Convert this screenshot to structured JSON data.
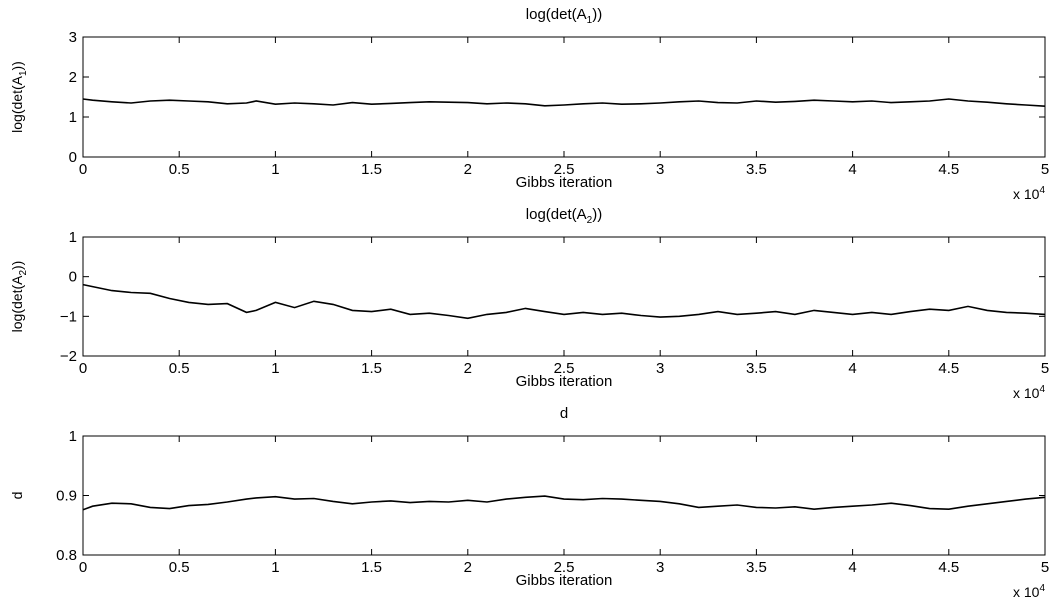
{
  "chart_data": [
    {
      "type": "line",
      "title": "log(det(A_1))",
      "xlabel": "Gibbs iteration",
      "ylabel": "log(det(A_1))",
      "x_multiplier": "x 10^4",
      "xlim": [
        0,
        5
      ],
      "ylim": [
        0,
        3
      ],
      "xticks": [
        "0",
        "0.5",
        "1",
        "1.5",
        "2",
        "2.5",
        "3",
        "3.5",
        "4",
        "4.5",
        "5"
      ],
      "yticks": [
        "0",
        "1",
        "2",
        "3"
      ],
      "grid": false,
      "series": [
        {
          "x": [
            0,
            0.05,
            0.15,
            0.25,
            0.35,
            0.45,
            0.55,
            0.65,
            0.75,
            0.85,
            0.9,
            1.0,
            1.1,
            1.2,
            1.3,
            1.4,
            1.5,
            1.6,
            1.7,
            1.8,
            1.9,
            2.0,
            2.1,
            2.2,
            2.3,
            2.4,
            2.5,
            2.6,
            2.7,
            2.8,
            2.9,
            3.0,
            3.1,
            3.2,
            3.3,
            3.4,
            3.5,
            3.6,
            3.7,
            3.8,
            3.9,
            4.0,
            4.1,
            4.2,
            4.3,
            4.4,
            4.5,
            4.6,
            4.7,
            4.8,
            4.9,
            5.0
          ],
          "y": [
            1.45,
            1.42,
            1.38,
            1.35,
            1.4,
            1.42,
            1.4,
            1.38,
            1.33,
            1.35,
            1.4,
            1.32,
            1.35,
            1.33,
            1.3,
            1.36,
            1.32,
            1.34,
            1.36,
            1.38,
            1.37,
            1.36,
            1.33,
            1.35,
            1.33,
            1.28,
            1.3,
            1.33,
            1.35,
            1.32,
            1.33,
            1.35,
            1.38,
            1.4,
            1.36,
            1.35,
            1.4,
            1.37,
            1.39,
            1.42,
            1.4,
            1.38,
            1.4,
            1.36,
            1.38,
            1.4,
            1.45,
            1.4,
            1.37,
            1.33,
            1.3,
            1.27
          ]
        }
      ]
    },
    {
      "type": "line",
      "title": "log(det(A_2))",
      "xlabel": "Gibbs iteration",
      "ylabel": "log(det(A_2))",
      "x_multiplier": "x 10^4",
      "xlim": [
        0,
        5
      ],
      "ylim": [
        -2,
        1
      ],
      "xticks": [
        "0",
        "0.5",
        "1",
        "1.5",
        "2",
        "2.5",
        "3",
        "3.5",
        "4",
        "4.5",
        "5"
      ],
      "yticks": [
        "−2",
        "−1",
        "0",
        "1"
      ],
      "grid": false,
      "series": [
        {
          "x": [
            0,
            0.05,
            0.15,
            0.25,
            0.35,
            0.45,
            0.55,
            0.65,
            0.75,
            0.85,
            0.9,
            1.0,
            1.1,
            1.2,
            1.3,
            1.4,
            1.5,
            1.6,
            1.7,
            1.8,
            1.9,
            2.0,
            2.1,
            2.2,
            2.3,
            2.4,
            2.5,
            2.6,
            2.7,
            2.8,
            2.9,
            3.0,
            3.1,
            3.2,
            3.3,
            3.4,
            3.5,
            3.6,
            3.7,
            3.8,
            3.9,
            4.0,
            4.1,
            4.2,
            4.3,
            4.4,
            4.5,
            4.6,
            4.7,
            4.8,
            4.9,
            5.0
          ],
          "y": [
            -0.2,
            -0.25,
            -0.35,
            -0.4,
            -0.42,
            -0.55,
            -0.65,
            -0.7,
            -0.68,
            -0.9,
            -0.85,
            -0.65,
            -0.78,
            -0.62,
            -0.7,
            -0.85,
            -0.88,
            -0.82,
            -0.95,
            -0.92,
            -0.98,
            -1.05,
            -0.95,
            -0.9,
            -0.8,
            -0.88,
            -0.95,
            -0.9,
            -0.95,
            -0.92,
            -0.98,
            -1.02,
            -1.0,
            -0.95,
            -0.88,
            -0.95,
            -0.92,
            -0.88,
            -0.95,
            -0.85,
            -0.9,
            -0.95,
            -0.9,
            -0.95,
            -0.88,
            -0.82,
            -0.85,
            -0.75,
            -0.85,
            -0.9,
            -0.92,
            -0.95
          ]
        }
      ]
    },
    {
      "type": "line",
      "title": "d",
      "xlabel": "Gibbs iteration",
      "ylabel": "d",
      "x_multiplier": "x 10^4",
      "xlim": [
        0,
        5
      ],
      "ylim": [
        0.8,
        1
      ],
      "xticks": [
        "0",
        "0.5",
        "1",
        "1.5",
        "2",
        "2.5",
        "3",
        "3.5",
        "4",
        "4.5",
        "5"
      ],
      "yticks": [
        "0.8",
        "0.9",
        "1"
      ],
      "grid": false,
      "series": [
        {
          "x": [
            0,
            0.05,
            0.15,
            0.25,
            0.35,
            0.45,
            0.55,
            0.65,
            0.75,
            0.85,
            0.9,
            1.0,
            1.1,
            1.2,
            1.3,
            1.4,
            1.5,
            1.6,
            1.7,
            1.8,
            1.9,
            2.0,
            2.1,
            2.2,
            2.3,
            2.4,
            2.5,
            2.6,
            2.7,
            2.8,
            2.9,
            3.0,
            3.1,
            3.2,
            3.3,
            3.4,
            3.5,
            3.6,
            3.7,
            3.8,
            3.9,
            4.0,
            4.1,
            4.2,
            4.3,
            4.4,
            4.5,
            4.6,
            4.7,
            4.8,
            4.9,
            5.0
          ],
          "y": [
            0.876,
            0.882,
            0.887,
            0.886,
            0.88,
            0.878,
            0.883,
            0.885,
            0.889,
            0.894,
            0.896,
            0.898,
            0.894,
            0.895,
            0.89,
            0.886,
            0.889,
            0.891,
            0.888,
            0.89,
            0.889,
            0.892,
            0.889,
            0.894,
            0.897,
            0.899,
            0.894,
            0.893,
            0.895,
            0.894,
            0.892,
            0.89,
            0.886,
            0.88,
            0.882,
            0.884,
            0.88,
            0.879,
            0.881,
            0.877,
            0.88,
            0.882,
            0.884,
            0.887,
            0.883,
            0.878,
            0.877,
            0.882,
            0.886,
            0.89,
            0.894,
            0.897
          ]
        }
      ]
    }
  ]
}
